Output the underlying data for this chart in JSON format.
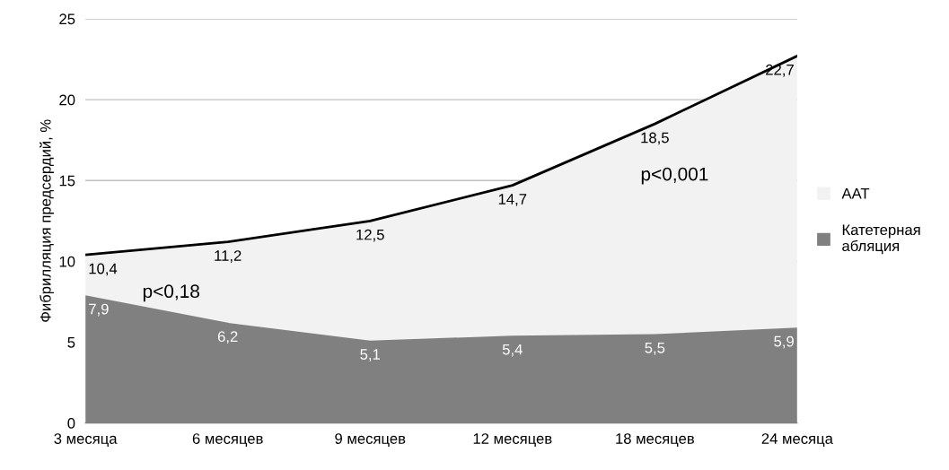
{
  "chart_data": {
    "type": "area",
    "ylabel": "Фибрилляция предсердий, %",
    "categories": [
      "3 месяца",
      "6 месяцев",
      "9 месяцев",
      "12 месяцев",
      "18 месяцев",
      "24 месяца"
    ],
    "series": [
      {
        "name": "ААТ",
        "color": "#f2f2f2",
        "values": [
          10.4,
          11.2,
          12.5,
          14.7,
          18.5,
          22.7
        ],
        "value_labels": [
          "10,4",
          "11,2",
          "12,5",
          "14,7",
          "18,5",
          "22,7"
        ]
      },
      {
        "name": "Катетерная абляция",
        "color": "#808080",
        "values": [
          7.9,
          6.2,
          5.1,
          5.4,
          5.5,
          5.9
        ],
        "value_labels": [
          "7,9",
          "6,2",
          "5,1",
          "5,4",
          "5,5",
          "5,9"
        ]
      }
    ],
    "ylim": [
      0,
      25
    ],
    "yticks": [
      0,
      5,
      10,
      15,
      20,
      25
    ],
    "grid": "y",
    "legend": "right",
    "annotations": [
      "p<0,18",
      "p<0,001"
    ]
  }
}
